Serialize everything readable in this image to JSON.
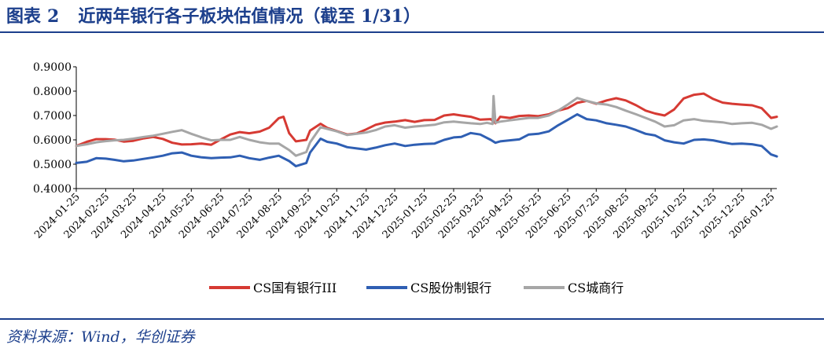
{
  "header": {
    "figure_label": "图表",
    "figure_number": "2",
    "title": "近两年银行各子板块估值情况（截至 1/31）"
  },
  "footer": {
    "source": "资料来源：Wind，华创证券"
  },
  "chart_data": {
    "type": "line",
    "ylim": [
      0.4,
      0.9
    ],
    "yticks": [
      "0.9000",
      "0.8000",
      "0.7000",
      "0.6000",
      "0.5000",
      "0.4000"
    ],
    "xticks": [
      "2024-01-25",
      "2024-02-25",
      "2024-03-25",
      "2024-04-25",
      "2024-05-25",
      "2024-06-25",
      "2024-07-25",
      "2024-08-25",
      "2024-09-25",
      "2024-10-25",
      "2024-11-25",
      "2024-12-25",
      "2025-01-25",
      "2025-02-25",
      "2025-03-25",
      "2025-04-25",
      "2025-05-25",
      "2025-06-25",
      "2025-07-25",
      "2025-08-25",
      "2025-09-25",
      "2025-10-25",
      "2025-11-25",
      "2025-12-25",
      "2026-01-25"
    ],
    "x_range": [
      "2024-01-25",
      "2026-01-31"
    ],
    "grid": false,
    "legend_position": "bottom",
    "series": [
      {
        "name": "CS国有银行III",
        "color": "#d63a33",
        "points": [
          [
            "2024-01-25",
            0.575
          ],
          [
            "2024-02-05",
            0.592
          ],
          [
            "2024-02-15",
            0.603
          ],
          [
            "2024-02-25",
            0.603
          ],
          [
            "2024-03-05",
            0.601
          ],
          [
            "2024-03-15",
            0.593
          ],
          [
            "2024-03-25",
            0.596
          ],
          [
            "2024-04-05",
            0.606
          ],
          [
            "2024-04-15",
            0.612
          ],
          [
            "2024-04-25",
            0.604
          ],
          [
            "2024-05-05",
            0.588
          ],
          [
            "2024-05-15",
            0.581
          ],
          [
            "2024-05-25",
            0.582
          ],
          [
            "2024-06-05",
            0.585
          ],
          [
            "2024-06-15",
            0.58
          ],
          [
            "2024-06-25",
            0.602
          ],
          [
            "2024-07-05",
            0.622
          ],
          [
            "2024-07-15",
            0.632
          ],
          [
            "2024-07-25",
            0.627
          ],
          [
            "2024-08-05",
            0.634
          ],
          [
            "2024-08-15",
            0.65
          ],
          [
            "2024-08-25",
            0.689
          ],
          [
            "2024-08-30",
            0.695
          ],
          [
            "2024-09-05",
            0.627
          ],
          [
            "2024-09-12",
            0.594
          ],
          [
            "2024-09-23",
            0.6
          ],
          [
            "2024-09-27",
            0.638
          ],
          [
            "2024-10-08",
            0.666
          ],
          [
            "2024-10-15",
            0.649
          ],
          [
            "2024-10-25",
            0.636
          ],
          [
            "2024-11-05",
            0.622
          ],
          [
            "2024-11-15",
            0.626
          ],
          [
            "2024-11-25",
            0.643
          ],
          [
            "2024-12-05",
            0.662
          ],
          [
            "2024-12-15",
            0.671
          ],
          [
            "2024-12-25",
            0.675
          ],
          [
            "2025-01-05",
            0.681
          ],
          [
            "2025-01-15",
            0.674
          ],
          [
            "2025-01-25",
            0.681
          ],
          [
            "2025-02-05",
            0.682
          ],
          [
            "2025-02-15",
            0.7
          ],
          [
            "2025-02-25",
            0.705
          ],
          [
            "2025-03-05",
            0.7
          ],
          [
            "2025-03-15",
            0.695
          ],
          [
            "2025-03-25",
            0.683
          ],
          [
            "2025-04-05",
            0.685
          ],
          [
            "2025-04-10",
            0.668
          ],
          [
            "2025-04-15",
            0.695
          ],
          [
            "2025-04-25",
            0.69
          ],
          [
            "2025-05-05",
            0.698
          ],
          [
            "2025-05-15",
            0.7
          ],
          [
            "2025-05-25",
            0.697
          ],
          [
            "2025-06-05",
            0.705
          ],
          [
            "2025-06-15",
            0.72
          ],
          [
            "2025-06-25",
            0.73
          ],
          [
            "2025-07-05",
            0.752
          ],
          [
            "2025-07-15",
            0.76
          ],
          [
            "2025-07-25",
            0.748
          ],
          [
            "2025-08-05",
            0.762
          ],
          [
            "2025-08-15",
            0.771
          ],
          [
            "2025-08-25",
            0.762
          ],
          [
            "2025-09-05",
            0.742
          ],
          [
            "2025-09-15",
            0.72
          ],
          [
            "2025-09-25",
            0.708
          ],
          [
            "2025-10-05",
            0.7
          ],
          [
            "2025-10-15",
            0.725
          ],
          [
            "2025-10-25",
            0.77
          ],
          [
            "2025-11-05",
            0.785
          ],
          [
            "2025-11-15",
            0.79
          ],
          [
            "2025-11-25",
            0.768
          ],
          [
            "2025-12-05",
            0.753
          ],
          [
            "2025-12-15",
            0.748
          ],
          [
            "2025-12-25",
            0.745
          ],
          [
            "2026-01-05",
            0.742
          ],
          [
            "2026-01-15",
            0.73
          ],
          [
            "2026-01-25",
            0.69
          ],
          [
            "2026-01-31",
            0.695
          ]
        ]
      },
      {
        "name": "CS股份制银行",
        "color": "#2f5fb3",
        "points": [
          [
            "2024-01-25",
            0.505
          ],
          [
            "2024-02-05",
            0.51
          ],
          [
            "2024-02-15",
            0.525
          ],
          [
            "2024-02-25",
            0.523
          ],
          [
            "2024-03-05",
            0.518
          ],
          [
            "2024-03-15",
            0.512
          ],
          [
            "2024-03-25",
            0.515
          ],
          [
            "2024-04-05",
            0.522
          ],
          [
            "2024-04-15",
            0.528
          ],
          [
            "2024-04-25",
            0.535
          ],
          [
            "2024-05-05",
            0.545
          ],
          [
            "2024-05-15",
            0.548
          ],
          [
            "2024-05-25",
            0.535
          ],
          [
            "2024-06-05",
            0.528
          ],
          [
            "2024-06-15",
            0.525
          ],
          [
            "2024-06-25",
            0.527
          ],
          [
            "2024-07-05",
            0.528
          ],
          [
            "2024-07-15",
            0.535
          ],
          [
            "2024-07-25",
            0.525
          ],
          [
            "2024-08-05",
            0.518
          ],
          [
            "2024-08-15",
            0.527
          ],
          [
            "2024-08-25",
            0.535
          ],
          [
            "2024-09-05",
            0.513
          ],
          [
            "2024-09-12",
            0.492
          ],
          [
            "2024-09-23",
            0.505
          ],
          [
            "2024-09-27",
            0.548
          ],
          [
            "2024-10-08",
            0.605
          ],
          [
            "2024-10-15",
            0.592
          ],
          [
            "2024-10-25",
            0.585
          ],
          [
            "2024-11-05",
            0.57
          ],
          [
            "2024-11-15",
            0.565
          ],
          [
            "2024-11-25",
            0.56
          ],
          [
            "2024-12-05",
            0.568
          ],
          [
            "2024-12-15",
            0.578
          ],
          [
            "2024-12-25",
            0.585
          ],
          [
            "2025-01-05",
            0.575
          ],
          [
            "2025-01-15",
            0.58
          ],
          [
            "2025-01-25",
            0.583
          ],
          [
            "2025-02-05",
            0.585
          ],
          [
            "2025-02-15",
            0.6
          ],
          [
            "2025-02-25",
            0.61
          ],
          [
            "2025-03-05",
            0.612
          ],
          [
            "2025-03-15",
            0.628
          ],
          [
            "2025-03-25",
            0.622
          ],
          [
            "2025-04-05",
            0.6
          ],
          [
            "2025-04-10",
            0.588
          ],
          [
            "2025-04-15",
            0.594
          ],
          [
            "2025-04-25",
            0.598
          ],
          [
            "2025-05-05",
            0.602
          ],
          [
            "2025-05-15",
            0.622
          ],
          [
            "2025-05-25",
            0.625
          ],
          [
            "2025-06-05",
            0.635
          ],
          [
            "2025-06-15",
            0.66
          ],
          [
            "2025-06-25",
            0.682
          ],
          [
            "2025-07-05",
            0.705
          ],
          [
            "2025-07-15",
            0.685
          ],
          [
            "2025-07-25",
            0.68
          ],
          [
            "2025-08-05",
            0.668
          ],
          [
            "2025-08-15",
            0.662
          ],
          [
            "2025-08-25",
            0.655
          ],
          [
            "2025-09-05",
            0.64
          ],
          [
            "2025-09-15",
            0.625
          ],
          [
            "2025-09-25",
            0.618
          ],
          [
            "2025-10-05",
            0.598
          ],
          [
            "2025-10-15",
            0.59
          ],
          [
            "2025-10-25",
            0.585
          ],
          [
            "2025-11-05",
            0.6
          ],
          [
            "2025-11-15",
            0.602
          ],
          [
            "2025-11-25",
            0.598
          ],
          [
            "2025-12-05",
            0.59
          ],
          [
            "2025-12-15",
            0.583
          ],
          [
            "2025-12-25",
            0.585
          ],
          [
            "2026-01-05",
            0.582
          ],
          [
            "2026-01-15",
            0.575
          ],
          [
            "2026-01-25",
            0.54
          ],
          [
            "2026-01-31",
            0.532
          ]
        ]
      },
      {
        "name": "CS城商行",
        "color": "#a6a6a6",
        "points": [
          [
            "2024-01-25",
            0.575
          ],
          [
            "2024-02-05",
            0.582
          ],
          [
            "2024-02-15",
            0.59
          ],
          [
            "2024-02-25",
            0.595
          ],
          [
            "2024-03-05",
            0.598
          ],
          [
            "2024-03-15",
            0.6
          ],
          [
            "2024-03-25",
            0.605
          ],
          [
            "2024-04-05",
            0.612
          ],
          [
            "2024-04-15",
            0.617
          ],
          [
            "2024-04-25",
            0.625
          ],
          [
            "2024-05-05",
            0.633
          ],
          [
            "2024-05-15",
            0.64
          ],
          [
            "2024-05-25",
            0.625
          ],
          [
            "2024-06-05",
            0.61
          ],
          [
            "2024-06-15",
            0.598
          ],
          [
            "2024-06-25",
            0.6
          ],
          [
            "2024-07-05",
            0.6
          ],
          [
            "2024-07-15",
            0.612
          ],
          [
            "2024-07-25",
            0.6
          ],
          [
            "2024-08-05",
            0.59
          ],
          [
            "2024-08-15",
            0.585
          ],
          [
            "2024-08-25",
            0.585
          ],
          [
            "2024-09-05",
            0.558
          ],
          [
            "2024-09-12",
            0.535
          ],
          [
            "2024-09-23",
            0.55
          ],
          [
            "2024-09-27",
            0.59
          ],
          [
            "2024-10-08",
            0.652
          ],
          [
            "2024-10-15",
            0.645
          ],
          [
            "2024-10-25",
            0.635
          ],
          [
            "2024-11-05",
            0.62
          ],
          [
            "2024-11-15",
            0.625
          ],
          [
            "2024-11-25",
            0.63
          ],
          [
            "2024-12-05",
            0.64
          ],
          [
            "2024-12-15",
            0.655
          ],
          [
            "2024-12-25",
            0.66
          ],
          [
            "2025-01-05",
            0.65
          ],
          [
            "2025-01-15",
            0.655
          ],
          [
            "2025-01-25",
            0.658
          ],
          [
            "2025-02-05",
            0.662
          ],
          [
            "2025-02-15",
            0.672
          ],
          [
            "2025-02-25",
            0.675
          ],
          [
            "2025-03-05",
            0.672
          ],
          [
            "2025-03-15",
            0.668
          ],
          [
            "2025-03-25",
            0.665
          ],
          [
            "2025-04-01",
            0.67
          ],
          [
            "2025-04-07",
            0.665
          ],
          [
            "2025-04-08",
            0.78
          ],
          [
            "2025-04-10",
            0.67
          ],
          [
            "2025-04-15",
            0.675
          ],
          [
            "2025-04-25",
            0.68
          ],
          [
            "2025-05-05",
            0.685
          ],
          [
            "2025-05-15",
            0.69
          ],
          [
            "2025-05-25",
            0.69
          ],
          [
            "2025-06-05",
            0.7
          ],
          [
            "2025-06-15",
            0.72
          ],
          [
            "2025-06-25",
            0.745
          ],
          [
            "2025-07-05",
            0.772
          ],
          [
            "2025-07-15",
            0.76
          ],
          [
            "2025-07-25",
            0.75
          ],
          [
            "2025-08-05",
            0.745
          ],
          [
            "2025-08-15",
            0.735
          ],
          [
            "2025-08-25",
            0.72
          ],
          [
            "2025-09-05",
            0.705
          ],
          [
            "2025-09-15",
            0.69
          ],
          [
            "2025-09-25",
            0.675
          ],
          [
            "2025-10-05",
            0.655
          ],
          [
            "2025-10-15",
            0.66
          ],
          [
            "2025-10-25",
            0.68
          ],
          [
            "2025-11-05",
            0.685
          ],
          [
            "2025-11-15",
            0.678
          ],
          [
            "2025-11-25",
            0.675
          ],
          [
            "2025-12-05",
            0.672
          ],
          [
            "2025-12-15",
            0.665
          ],
          [
            "2025-12-25",
            0.668
          ],
          [
            "2026-01-05",
            0.67
          ],
          [
            "2026-01-15",
            0.662
          ],
          [
            "2026-01-25",
            0.645
          ],
          [
            "2026-01-31",
            0.655
          ]
        ]
      }
    ]
  }
}
